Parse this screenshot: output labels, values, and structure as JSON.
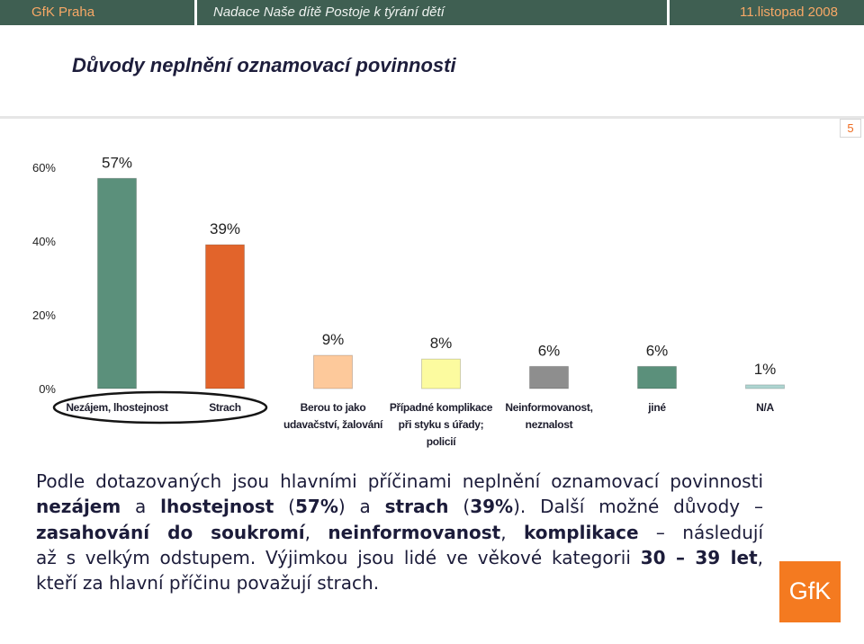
{
  "header": {
    "left": "GfK Praha",
    "center": "Nadace Naše dítě Postoje k týrání dětí",
    "right": "11.listopad 2008"
  },
  "theme": {
    "header_bg": "#3f5f52",
    "brand_orange": "#f47a20"
  },
  "title": "Důvody neplnění oznamovací povinnosti",
  "slide_number": "5",
  "chart_data": {
    "type": "bar",
    "categories": [
      "Nezájem, lhostejnost",
      "Strach",
      "Berou to jako\nudavačství, žalování",
      "Případné komplikace\npři styku s úřady;\npolicií",
      "Neinformovanost,\nneznalost",
      "jiné",
      "N/A"
    ],
    "values": [
      57,
      39,
      9,
      8,
      6,
      6,
      1
    ],
    "data_labels": [
      "57%",
      "39%",
      "9%",
      "8%",
      "6%",
      "6%",
      "1%"
    ],
    "yticks": [
      0,
      20,
      40,
      60
    ],
    "ytick_labels": [
      "0%",
      "20%",
      "40%",
      "60%"
    ],
    "ylim": [
      0,
      60
    ],
    "grid": false,
    "colors": [
      "#5b907b",
      "#e2642b",
      "#fdc99b",
      "#fcfb9f",
      "#8e8e8e",
      "#5b907b",
      "#aed5d1"
    ]
  },
  "summary": {
    "line1": "Podle dotazovaných jsou hlavními příčinami neplnění oznamovací povinnosti",
    "line2": [
      "nezájem",
      " a ",
      "lhostejnost",
      " (",
      "57%",
      ") a ",
      "strach",
      " (",
      "39%",
      "). Další možné důvody –"
    ],
    "line3": [
      "zasahování do soukromí",
      ", ",
      "neinformovanost",
      ", ",
      "komplikace",
      " – následují"
    ],
    "line4": [
      "až s velkým odstupem. Výjimkou jsou lidé ve věkové kategorii ",
      "30 – 39 let",
      ","
    ],
    "line5": "kteří za hlavní příčinu považují strach."
  },
  "logo": "GfK"
}
